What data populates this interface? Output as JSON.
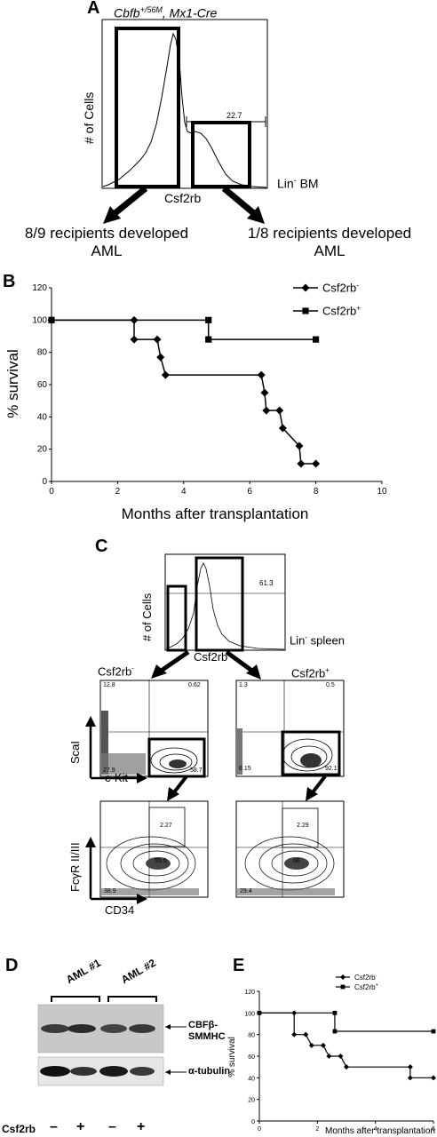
{
  "panel_a": {
    "letter": "A",
    "title_gene": "Cbfb",
    "title_sup": "+/56M",
    "title_rest": ", Mx1-Cre",
    "ylabel": "# of Cells",
    "xlabel": "Csf2rb",
    "gate_value": "22.7",
    "population": "Lin",
    "population_sup": "-",
    "population_rest": " BM",
    "outcome_left_line1": "8/9 recipients developed",
    "outcome_left_line2": "AML",
    "outcome_right_line1": "1/8 recipients developed",
    "outcome_right_line2": "AML"
  },
  "panel_b": {
    "letter": "B",
    "chart_data": {
      "type": "line",
      "xlabel": "Months after transplantation",
      "ylabel": "% survival",
      "xlim": [
        0,
        10
      ],
      "ylim": [
        0,
        120
      ],
      "xticks": [
        "0",
        "2",
        "4",
        "6",
        "8",
        "10"
      ],
      "yticks": [
        "0",
        "20",
        "40",
        "60",
        "80",
        "100",
        "120"
      ],
      "legend_position": "top-right",
      "series": [
        {
          "name": "Csf2rb",
          "name_sup": "-",
          "marker": "diamond",
          "x": [
            0,
            2.5,
            2.5,
            3.2,
            3.3,
            3.45,
            6.35,
            6.45,
            6.5,
            6.9,
            7.0,
            7.5,
            7.55,
            8.0
          ],
          "y": [
            100,
            100,
            88,
            88,
            77,
            66,
            66,
            55,
            44,
            44,
            33,
            22,
            11,
            11
          ]
        },
        {
          "name": "Csf2rb",
          "name_sup": "+",
          "marker": "square",
          "x": [
            0,
            4.75,
            4.75,
            8.0
          ],
          "y": [
            100,
            100,
            88,
            88
          ]
        }
      ]
    }
  },
  "panel_c": {
    "letter": "C",
    "hist_ylabel": "# of Cells",
    "hist_xlabel": "Csf2rb",
    "hist_gate": "61.3",
    "population": "Lin",
    "population_sup": "-",
    "population_rest": " spleen",
    "left_title": "Csf2rb",
    "left_title_sup": "-",
    "right_title": "Csf2rb",
    "right_title_sup": "+",
    "y1_label": "ScaI",
    "x1_label": "c-Kit",
    "y2_label": "FcγR II/III",
    "x2_label": "CD34",
    "left_top_quadrants": {
      "tl": "12.8",
      "tr": "0.62",
      "bl": "27.9",
      "br": "58.7"
    },
    "right_top_quadrants": {
      "tl": "1.3",
      "tr": "0.5",
      "bl": "6.15",
      "br": "92.1"
    },
    "left_bottom_quadrants": {
      "tr": "2.27",
      "br": "55.5",
      "bl": "38.9"
    },
    "right_bottom_quadrants": {
      "tr": "2.29",
      "br": "66",
      "bl": "29.4"
    }
  },
  "panel_d": {
    "letter": "D",
    "group1": "AML #1",
    "group2": "AML #2",
    "band1_line1": "CBFβ-",
    "band1_line2": "SMMHC",
    "band2": "α-tubulin",
    "row_label": "Csf2rb",
    "lanes": [
      "–",
      "+",
      "–",
      "+"
    ]
  },
  "panel_e": {
    "letter": "E",
    "chart_data": {
      "type": "line",
      "xlabel": "Months after transplantation",
      "ylabel": "% survival",
      "xlim": [
        0,
        6
      ],
      "ylim": [
        0,
        120
      ],
      "xticks": [
        "0",
        "2",
        "4",
        "6"
      ],
      "yticks": [
        "0",
        "20",
        "40",
        "60",
        "80",
        "100",
        "120"
      ],
      "legend_position": "top-right",
      "series": [
        {
          "name": "Csf2rb",
          "name_sup": "-",
          "marker": "diamond",
          "x": [
            0,
            1.2,
            1.2,
            1.6,
            1.8,
            2.2,
            2.4,
            2.8,
            3.0,
            5.2,
            5.2,
            6.0
          ],
          "y": [
            100,
            100,
            80,
            80,
            70,
            70,
            60,
            60,
            50,
            50,
            40,
            40
          ]
        },
        {
          "name": "Csf2rb",
          "name_sup": "+",
          "marker": "square",
          "x": [
            0,
            2.6,
            2.6,
            6.0
          ],
          "y": [
            100,
            100,
            83,
            83
          ]
        }
      ]
    }
  }
}
